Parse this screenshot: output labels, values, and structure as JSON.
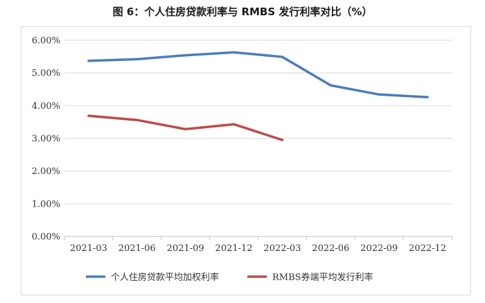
{
  "chart_data": {
    "type": "line",
    "title": "图 6：个人住房贷款利率与 RMBS 发行利率对比（%）",
    "x_labels": [
      "2021-03",
      "2021-06",
      "2021-09",
      "2021-12",
      "2022-03",
      "2022-06",
      "2022-09",
      "2022-12"
    ],
    "y_ticks": [
      "0.00%",
      "1.00%",
      "2.00%",
      "3.00%",
      "4.00%",
      "5.00%",
      "6.00%"
    ],
    "ylim": [
      0,
      6
    ],
    "grid": true,
    "legend_position": "bottom",
    "series": [
      {
        "name": "个人住房贷款平均加权利率",
        "color": "#4a7ebb",
        "values": [
          5.37,
          5.42,
          5.54,
          5.63,
          5.49,
          4.62,
          4.34,
          4.26
        ]
      },
      {
        "name": "RMBS券端平均发行利率",
        "color": "#be4b48",
        "values": [
          3.69,
          3.56,
          3.28,
          3.43,
          2.95
        ]
      }
    ]
  }
}
